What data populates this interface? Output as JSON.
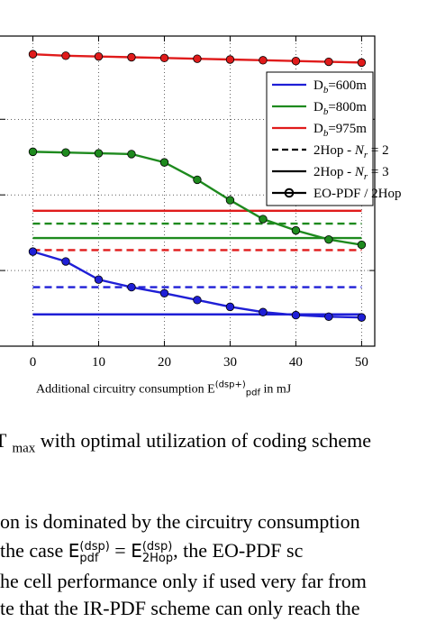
{
  "chart_data": {
    "type": "line",
    "x": [
      0,
      5,
      10,
      15,
      20,
      25,
      30,
      35,
      40,
      45,
      50
    ],
    "xticks": [
      0,
      10,
      20,
      30,
      40,
      50
    ],
    "xlim": [
      -5,
      52
    ],
    "ylim": [
      0,
      4.1
    ],
    "ygrid": [
      1,
      2,
      3
    ],
    "grid": true,
    "xlabel_prefix": "Additional circuitry consumption E",
    "xlabel_sub": "pdf",
    "xlabel_sup": "(dsp+)",
    "xlabel_suffix": " in mJ",
    "legend_position": "top-right",
    "legend": [
      {
        "label_main": "D",
        "label_sub": "b",
        "label_rest": "=600m",
        "color": "#1f1fd6",
        "style": "solid"
      },
      {
        "label_main": "D",
        "label_sub": "b",
        "label_rest": "=800m",
        "color": "#1e8a1e",
        "style": "solid"
      },
      {
        "label_main": "D",
        "label_sub": "b",
        "label_rest": "=975m",
        "color": "#e01b1b",
        "style": "solid"
      },
      {
        "label_main": "2Hop - ",
        "label_sub": "",
        "label_rest": "N_r = 2",
        "color": "#000000",
        "style": "dashed"
      },
      {
        "label_main": "2Hop - ",
        "label_sub": "",
        "label_rest": "N_r = 3",
        "color": "#000000",
        "style": "solid"
      },
      {
        "label_main": "EO-PDF / 2Hop",
        "label_sub": "",
        "label_rest": "",
        "color": "#000000",
        "style": "marker"
      }
    ],
    "series": [
      {
        "group": "600m",
        "kind": "eo-pdf",
        "color": "#1f1fd6",
        "values": [
          1.25,
          1.12,
          0.88,
          0.78,
          0.7,
          0.61,
          0.52,
          0.45,
          0.41,
          0.39,
          0.38
        ]
      },
      {
        "group": "800m",
        "kind": "eo-pdf",
        "color": "#1e8a1e",
        "values": [
          2.57,
          2.56,
          2.55,
          2.54,
          2.43,
          2.2,
          1.93,
          1.68,
          1.53,
          1.41,
          1.34
        ]
      },
      {
        "group": "975m",
        "kind": "eo-pdf",
        "color": "#e01b1b",
        "values": [
          3.86,
          3.84,
          3.83,
          3.82,
          3.81,
          3.8,
          3.79,
          3.78,
          3.77,
          3.76,
          3.75
        ]
      },
      {
        "group": "600m",
        "kind": "2hop-nr2",
        "color": "#1f1fd6",
        "constant": 0.78
      },
      {
        "group": "600m",
        "kind": "2hop-nr3",
        "color": "#1f1fd6",
        "constant": 0.42
      },
      {
        "group": "800m",
        "kind": "2hop-nr2",
        "color": "#1e8a1e",
        "constant": 1.62
      },
      {
        "group": "800m",
        "kind": "2hop-nr3",
        "color": "#1e8a1e",
        "constant": 1.43
      },
      {
        "group": "975m",
        "kind": "2hop-nr2",
        "color": "#e01b1b",
        "constant": 1.27
      },
      {
        "group": "975m",
        "kind": "2hop-nr3",
        "color": "#e01b1b",
        "constant": 1.79
      }
    ]
  },
  "caption": {
    "text": "T",
    "sub": "max",
    "rest": " with optimal utilization of coding scheme"
  },
  "paragraph": {
    "line1": "on is dominated by the circuitry consumption",
    "line2_a": " the case ",
    "line2_b": "E",
    "line2_b_sup": "(dsp)",
    "line2_b_sub": "pdf",
    "line2_c": " = ",
    "line2_d": "E",
    "line2_d_sup": "(dsp)",
    "line2_d_sub": "2Hop",
    "line2_e": ", the EO-PDF sc",
    "line3": "he cell performance only if used very far from",
    "line4": "te that the IR-PDF scheme can only reach the"
  }
}
